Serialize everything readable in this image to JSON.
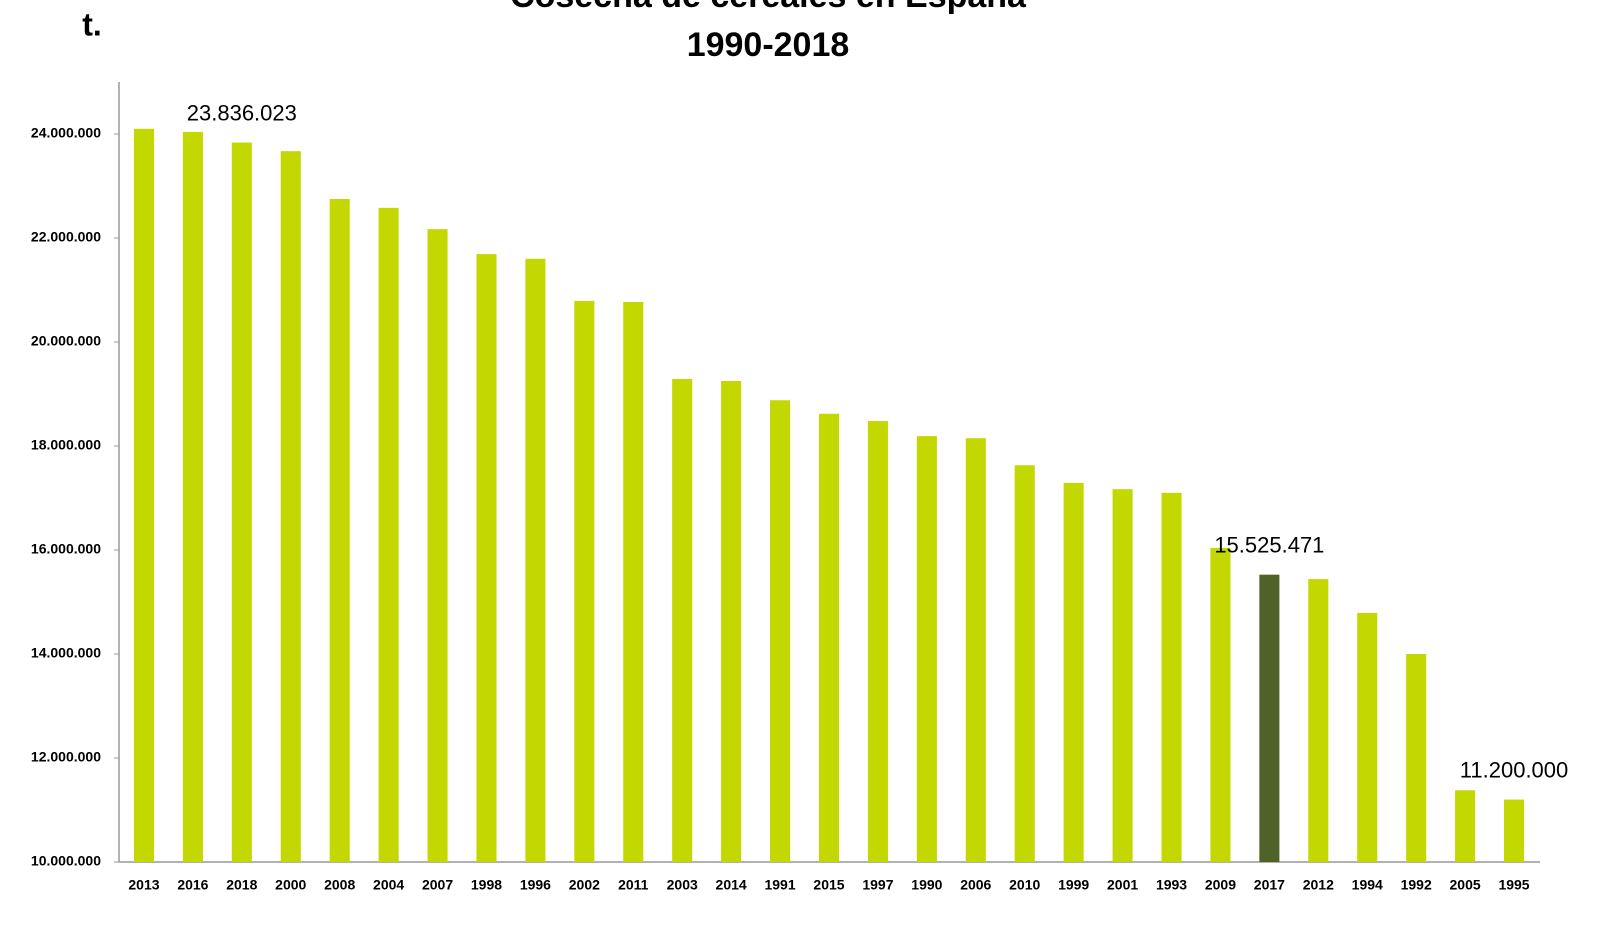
{
  "chart_data": {
    "type": "bar",
    "title": "Cosecha de cereales en España",
    "subtitle": "1990-2018",
    "y_label": "t.",
    "categories": [
      "2013",
      "2016",
      "2018",
      "2000",
      "2008",
      "2004",
      "2007",
      "1998",
      "1996",
      "2002",
      "2011",
      "2003",
      "2014",
      "1991",
      "2015",
      "1997",
      "1990",
      "2006",
      "2010",
      "1999",
      "2001",
      "1993",
      "2009",
      "2017",
      "2012",
      "1994",
      "1992",
      "2005",
      "1995"
    ],
    "values": [
      24100000,
      24040000,
      23836023,
      23670000,
      22750000,
      22580000,
      22170000,
      21690000,
      21600000,
      20790000,
      20770000,
      19290000,
      19250000,
      18880000,
      18620000,
      18480000,
      18190000,
      18150000,
      17630000,
      17290000,
      17170000,
      17100000,
      16040000,
      15525471,
      15440000,
      14790000,
      14000000,
      11380000,
      11200000
    ],
    "value_labels": [
      null,
      null,
      "23.836.023",
      null,
      null,
      null,
      null,
      null,
      null,
      null,
      null,
      null,
      null,
      null,
      null,
      null,
      null,
      null,
      null,
      null,
      null,
      null,
      null,
      "15.525.471",
      null,
      null,
      null,
      null,
      "11.200.000"
    ],
    "colors": [
      "#c2d800",
      "#c2d800",
      "#c2d800",
      "#c2d800",
      "#c2d800",
      "#c2d800",
      "#c2d800",
      "#c2d800",
      "#c2d800",
      "#c2d800",
      "#c2d800",
      "#c2d800",
      "#c2d800",
      "#c2d800",
      "#c2d800",
      "#c2d800",
      "#c2d800",
      "#c2d800",
      "#c2d800",
      "#c2d800",
      "#c2d800",
      "#c2d800",
      "#c2d800",
      "#4f6228",
      "#c2d800",
      "#c2d800",
      "#c2d800",
      "#c2d800",
      "#c2d800"
    ],
    "ylim": [
      10000000,
      25000000
    ],
    "yticks": [
      {
        "value": 10000000,
        "label": "10.000.000"
      },
      {
        "value": 12000000,
        "label": "12.000.000"
      },
      {
        "value": 14000000,
        "label": "14.000.000"
      },
      {
        "value": 16000000,
        "label": "16.000.000"
      },
      {
        "value": 18000000,
        "label": "18.000.000"
      },
      {
        "value": 20000000,
        "label": "20.000.000"
      },
      {
        "value": 22000000,
        "label": "22.000.000"
      },
      {
        "value": 24000000,
        "label": "24.000.000"
      }
    ],
    "grid": false
  }
}
